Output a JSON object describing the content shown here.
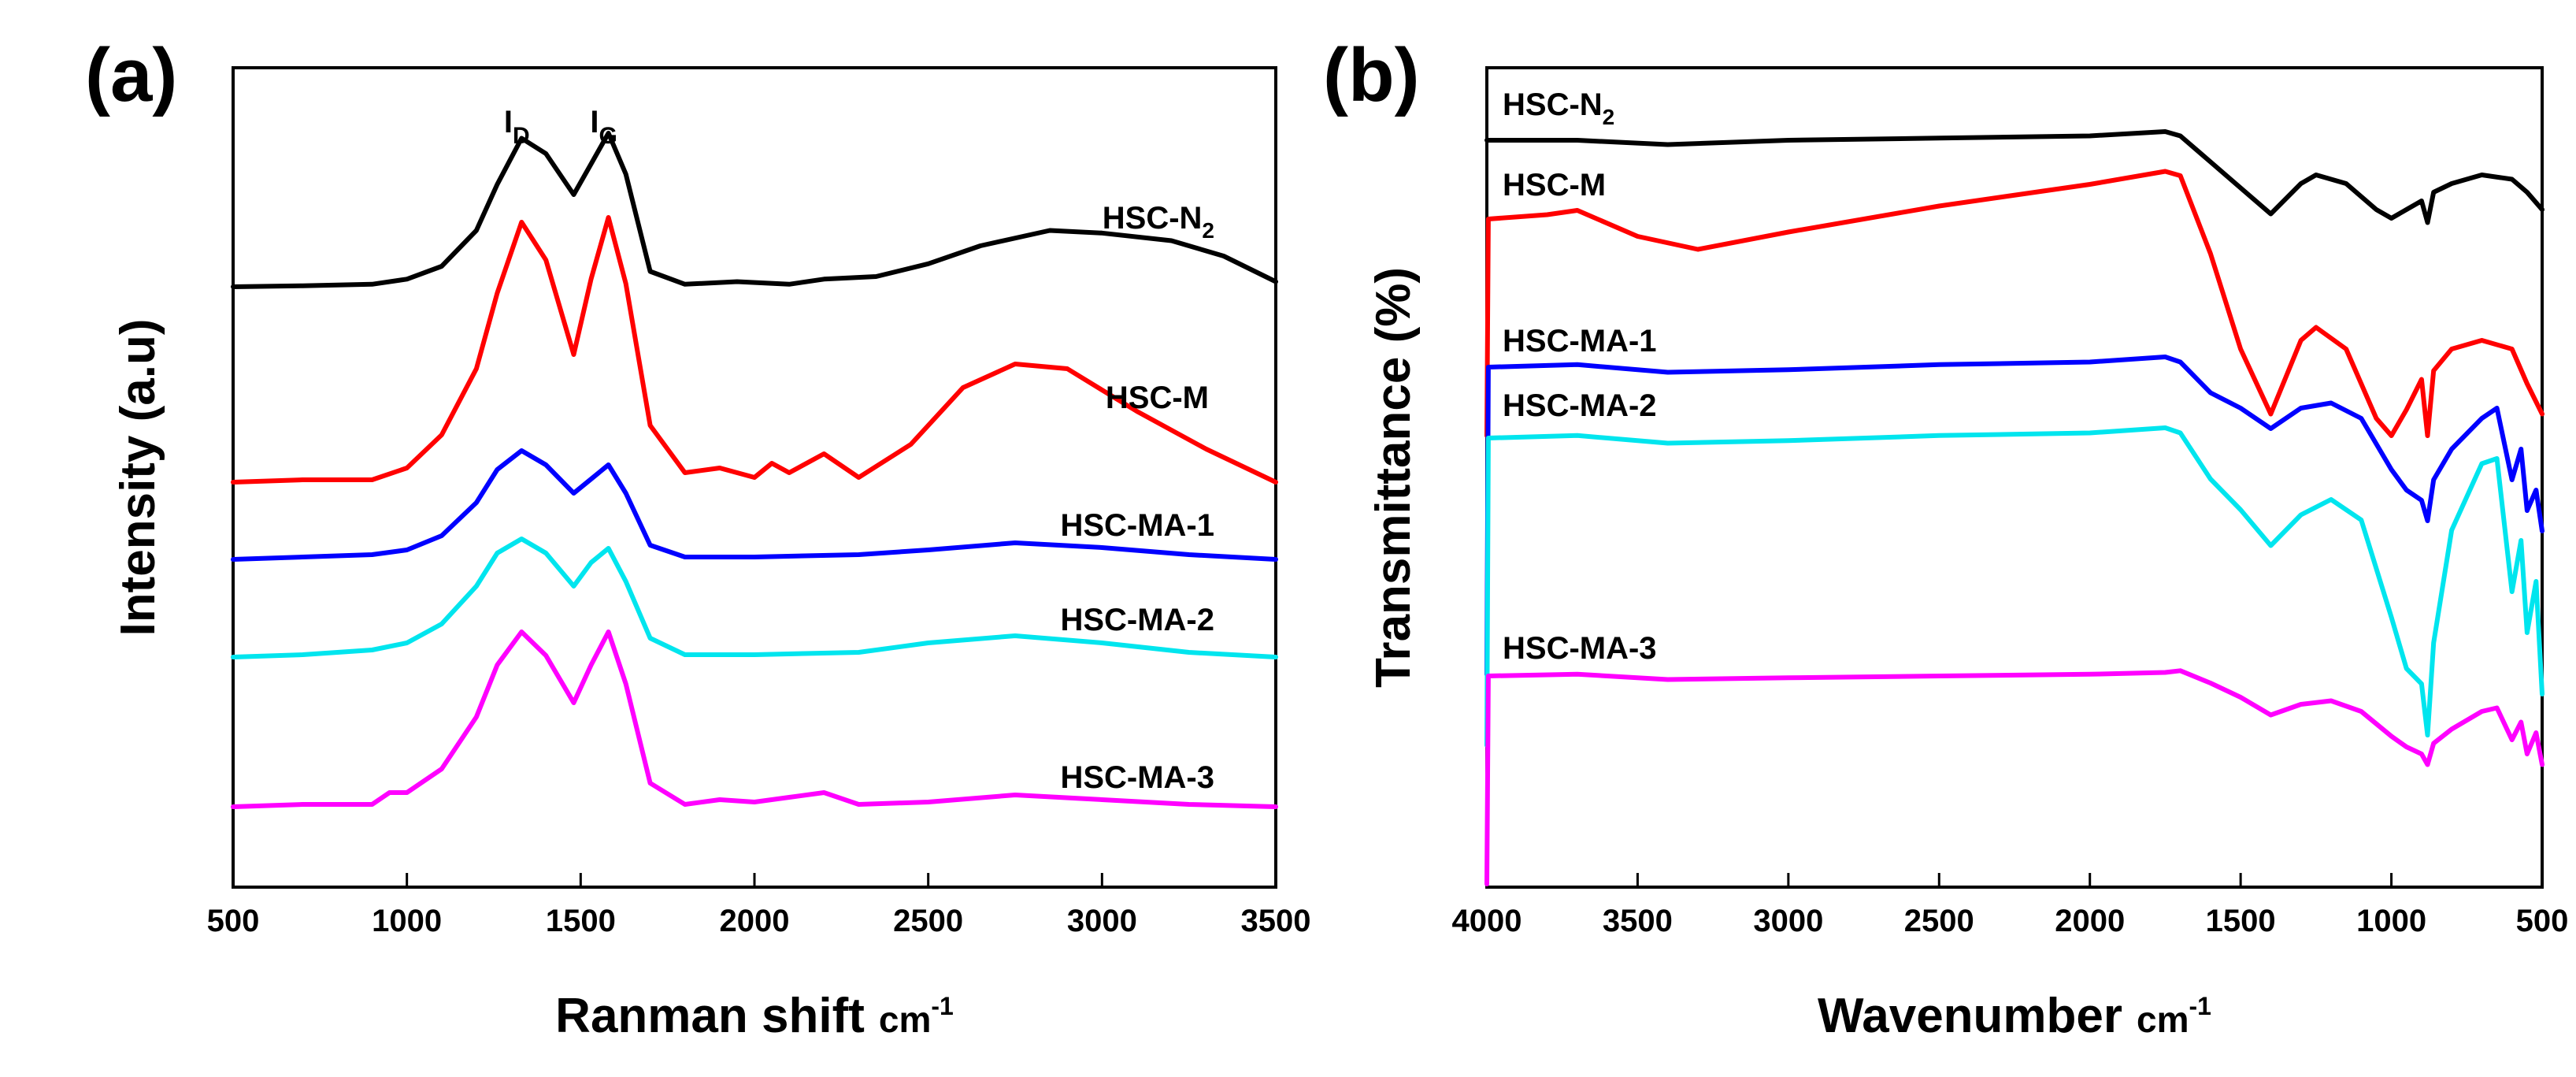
{
  "chart_data": [
    {
      "type": "line",
      "panel_label": "(a)",
      "xlabel": "Ranman shift",
      "xunit_main": "cm",
      "xunit_sup": "-1",
      "ylabel": "Intensity (a.u)",
      "xlim": [
        500,
        3500
      ],
      "xticks": [
        500,
        1000,
        1500,
        2000,
        2500,
        3000,
        3500
      ],
      "peak_labels": [
        {
          "main": "I",
          "sub": "D",
          "x": 1330
        },
        {
          "main": "I",
          "sub": "G",
          "x": 1580
        }
      ],
      "series": [
        {
          "name": "HSC-N",
          "name_sub": "2",
          "color": "#000000",
          "x": [
            500,
            700,
            900,
            1000,
            1100,
            1200,
            1260,
            1330,
            1400,
            1480,
            1530,
            1580,
            1630,
            1700,
            1800,
            1950,
            2100,
            2200,
            2350,
            2500,
            2650,
            2850,
            3000,
            3200,
            3350,
            3500
          ],
          "y": [
            0,
            0.2,
            0.5,
            1.5,
            4,
            11,
            20,
            29,
            26,
            18,
            24,
            30,
            22,
            3,
            0.5,
            1,
            0.5,
            1.5,
            2,
            4.5,
            8,
            11,
            10.5,
            9,
            6,
            1
          ]
        },
        {
          "name": "HSC-M",
          "color": "#ff0000",
          "x": [
            500,
            700,
            900,
            1000,
            1100,
            1200,
            1260,
            1330,
            1400,
            1480,
            1530,
            1580,
            1630,
            1700,
            1800,
            1900,
            2000,
            2050,
            2100,
            2200,
            2300,
            2450,
            2600,
            2750,
            2900,
            3100,
            3300,
            3500
          ],
          "y": [
            0,
            0.5,
            0.5,
            3,
            10,
            24,
            40,
            55,
            47,
            27,
            43,
            56,
            42,
            12,
            2,
            3,
            1,
            4,
            2,
            6,
            1,
            8,
            20,
            25,
            24,
            15,
            7,
            0
          ]
        },
        {
          "name": "HSC-MA-1",
          "color": "#0000ff",
          "x": [
            500,
            700,
            900,
            1000,
            1100,
            1200,
            1260,
            1330,
            1400,
            1480,
            1530,
            1580,
            1630,
            1700,
            1800,
            2000,
            2300,
            2500,
            2750,
            3000,
            3250,
            3500
          ],
          "y": [
            0,
            0.5,
            1,
            2,
            5,
            12,
            19,
            23,
            20,
            14,
            17,
            20,
            14,
            3,
            0.5,
            0.5,
            1,
            2,
            3.5,
            2.5,
            1,
            0
          ]
        },
        {
          "name": "HSC-MA-2",
          "color": "#00e5ee",
          "x": [
            500,
            700,
            900,
            1000,
            1100,
            1200,
            1260,
            1330,
            1400,
            1480,
            1530,
            1580,
            1630,
            1700,
            1800,
            2000,
            2300,
            2500,
            2750,
            3000,
            3250,
            3500
          ],
          "y": [
            0,
            0.5,
            1.5,
            3,
            7,
            15,
            22,
            25,
            22,
            15,
            20,
            23,
            16,
            4,
            0.5,
            0.5,
            1,
            3,
            4.5,
            3,
            1,
            0
          ]
        },
        {
          "name": "HSC-MA-3",
          "color": "#ff00ff",
          "x": [
            500,
            700,
            900,
            950,
            1000,
            1100,
            1200,
            1260,
            1330,
            1400,
            1480,
            1530,
            1580,
            1630,
            1700,
            1800,
            1900,
            2000,
            2100,
            2200,
            2300,
            2500,
            2750,
            3000,
            3250,
            3500
          ],
          "y": [
            0,
            0.5,
            0.5,
            3,
            3,
            8,
            19,
            30,
            37,
            32,
            22,
            30,
            37,
            26,
            5,
            0.5,
            1.5,
            1,
            2,
            3,
            0.5,
            1,
            2.5,
            1.5,
            0.5,
            0
          ]
        }
      ]
    },
    {
      "type": "line",
      "panel_label": "(b)",
      "xlabel": "Wavenumber",
      "xunit_main": "cm",
      "xunit_sup": "-1",
      "ylabel": "Transmittance (%)",
      "xlim": [
        4000,
        500
      ],
      "xticks": [
        4000,
        3500,
        3000,
        2500,
        2000,
        1500,
        1000,
        500
      ],
      "series": [
        {
          "name": "HSC-N",
          "name_sub": "2",
          "color": "#000000",
          "x": [
            4000,
            3700,
            3400,
            3000,
            2500,
            2000,
            1750,
            1700,
            1600,
            1500,
            1400,
            1300,
            1250,
            1150,
            1050,
            1000,
            950,
            900,
            880,
            860,
            800,
            700,
            600,
            550,
            500
          ],
          "y": [
            100,
            100,
            99,
            100,
            100.5,
            101,
            102,
            101,
            95,
            89,
            83,
            90,
            92,
            90,
            84,
            82,
            84,
            86,
            81,
            88,
            90,
            92,
            91,
            88,
            84
          ]
        },
        {
          "name": "HSC-M",
          "color": "#ff0000",
          "x": [
            4000,
            3995,
            3800,
            3700,
            3500,
            3300,
            3000,
            2500,
            2000,
            1750,
            1700,
            1600,
            1500,
            1400,
            1300,
            1250,
            1150,
            1050,
            1000,
            950,
            900,
            880,
            860,
            800,
            700,
            600,
            550,
            500
          ],
          "y": [
            50,
            100,
            101,
            102,
            96,
            93,
            97,
            103,
            108,
            111,
            110,
            92,
            70,
            55,
            72,
            75,
            70,
            54,
            50,
            56,
            63,
            50,
            65,
            70,
            72,
            70,
            62,
            55
          ]
        },
        {
          "name": "HSC-MA-1",
          "color": "#0000ff",
          "x": [
            4000,
            3995,
            3700,
            3400,
            3000,
            2500,
            2000,
            1750,
            1700,
            1600,
            1500,
            1400,
            1300,
            1200,
            1100,
            1000,
            950,
            900,
            880,
            860,
            800,
            700,
            650,
            600,
            570,
            550,
            520,
            500
          ],
          "y": [
            40,
            100,
            100.5,
            99,
            99.5,
            100.5,
            101,
            102,
            101,
            95,
            92,
            88,
            92,
            93,
            90,
            80,
            76,
            74,
            70,
            78,
            84,
            90,
            92,
            78,
            84,
            72,
            76,
            68
          ]
        },
        {
          "name": "HSC-MA-2",
          "color": "#00e5ee",
          "x": [
            4000,
            3995,
            3700,
            3400,
            3000,
            2500,
            2000,
            1750,
            1700,
            1600,
            1500,
            1400,
            1300,
            1200,
            1100,
            1000,
            950,
            900,
            880,
            860,
            800,
            700,
            650,
            600,
            570,
            550,
            520,
            500
          ],
          "y": [
            40,
            100,
            100.5,
            99,
            99.5,
            100.5,
            101,
            102,
            101,
            92,
            86,
            79,
            85,
            88,
            84,
            65,
            55,
            52,
            42,
            60,
            82,
            95,
            96,
            70,
            80,
            62,
            72,
            50
          ]
        },
        {
          "name": "HSC-MA-3",
          "color": "#ff00ff",
          "x": [
            4000,
            3995,
            3700,
            3400,
            3000,
            2500,
            2000,
            1750,
            1700,
            1600,
            1500,
            1400,
            1300,
            1200,
            1100,
            1000,
            950,
            900,
            880,
            860,
            800,
            700,
            650,
            600,
            570,
            550,
            520,
            500
          ],
          "y": [
            20,
            100,
            100.5,
            99,
            99.5,
            100,
            100.5,
            101,
            101.5,
            98,
            94,
            89,
            92,
            93,
            90,
            83,
            80,
            78,
            75,
            81,
            85,
            90,
            91,
            82,
            87,
            78,
            84,
            75
          ]
        }
      ]
    }
  ]
}
